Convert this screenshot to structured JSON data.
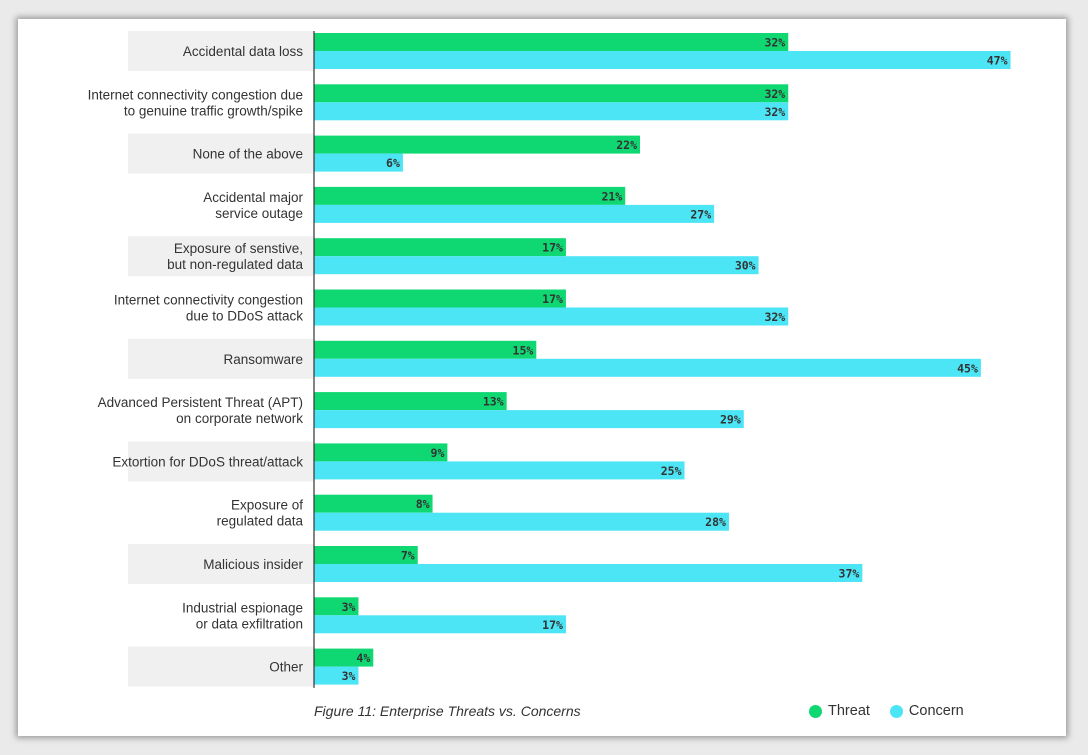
{
  "caption": "Figure 11: Enterprise Threats vs. Concerns",
  "legend": [
    {
      "label": "Threat",
      "color": "#0fd873"
    },
    {
      "label": "Concern",
      "color": "#4ce5f5"
    }
  ],
  "chart_data": {
    "type": "bar",
    "orientation": "horizontal",
    "title": "",
    "xlabel": "",
    "ylabel": "",
    "xlim": [
      0,
      50
    ],
    "grid": false,
    "legend_position": "bottom-right",
    "categories": [
      [
        "Accidental data loss"
      ],
      [
        "Internet connectivity congestion due",
        "to genuine traffic growth/spike"
      ],
      [
        "None of the above"
      ],
      [
        "Accidental major",
        "service outage"
      ],
      [
        "Exposure of senstive,",
        "but non-regulated data"
      ],
      [
        "Internet connectivity congestion",
        "due to DDoS attack"
      ],
      [
        "Ransomware"
      ],
      [
        "Advanced Persistent Threat (APT)",
        "on corporate network"
      ],
      [
        "Extortion for DDoS threat/attack"
      ],
      [
        "Exposure of",
        "regulated data"
      ],
      [
        "Malicious insider"
      ],
      [
        "Industrial espionage",
        "or data exfiltration"
      ],
      [
        "Other"
      ]
    ],
    "series": [
      {
        "name": "Threat",
        "color": "#0fd873",
        "values": [
          32,
          32,
          22,
          21,
          17,
          17,
          15,
          13,
          9,
          8,
          7,
          3,
          4
        ]
      },
      {
        "name": "Concern",
        "color": "#4ce5f5",
        "values": [
          47,
          32,
          6,
          27,
          30,
          32,
          45,
          29,
          25,
          28,
          37,
          17,
          3
        ]
      }
    ]
  }
}
